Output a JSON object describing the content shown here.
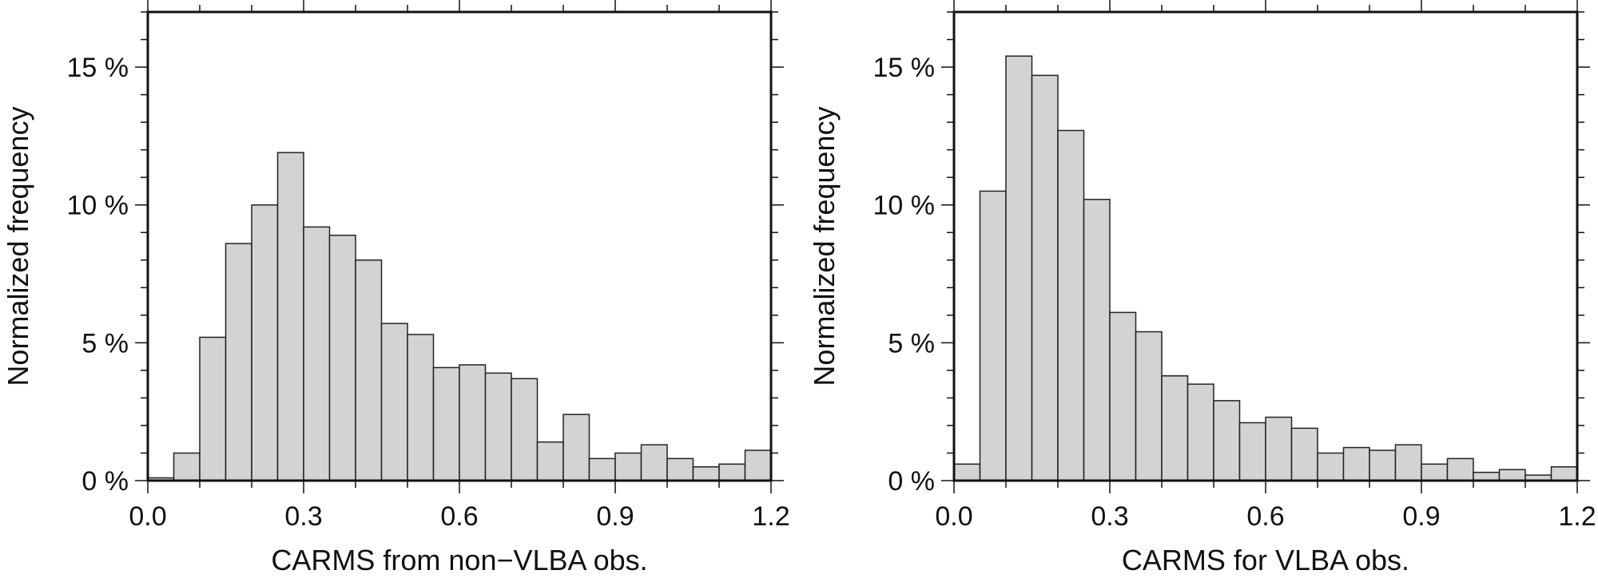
{
  "chart_data": [
    {
      "type": "bar",
      "xlabel": "CARMS from non−VLBA obs.",
      "ylabel": "Normalized frequency",
      "xlim": [
        0.0,
        1.2
      ],
      "ylim": [
        0,
        17
      ],
      "bin_width": 0.05,
      "x_ticks": [
        "0.0",
        "0.3",
        "0.6",
        "0.9",
        "1.2"
      ],
      "y_ticks": [
        "0 %",
        "5 %",
        "10 %",
        "15 %"
      ],
      "bins": [
        0.0,
        0.05,
        0.1,
        0.15,
        0.2,
        0.25,
        0.3,
        0.35,
        0.4,
        0.45,
        0.5,
        0.55,
        0.6,
        0.65,
        0.7,
        0.75,
        0.8,
        0.85,
        0.9,
        0.95,
        1.0,
        1.05,
        1.1,
        1.15
      ],
      "values": [
        0.1,
        1.0,
        5.2,
        8.6,
        10.0,
        11.9,
        9.2,
        8.9,
        8.0,
        5.7,
        5.3,
        4.1,
        4.2,
        3.9,
        3.7,
        1.4,
        2.4,
        0.8,
        1.0,
        1.3,
        0.8,
        0.5,
        0.6,
        1.1
      ],
      "bar_color": "#d3d3d3",
      "grid": false
    },
    {
      "type": "bar",
      "xlabel": "CARMS for VLBA obs.",
      "ylabel": "Normalized frequency",
      "xlim": [
        0.0,
        1.2
      ],
      "ylim": [
        0,
        17
      ],
      "bin_width": 0.05,
      "x_ticks": [
        "0.0",
        "0.3",
        "0.6",
        "0.9",
        "1.2"
      ],
      "y_ticks": [
        "0 %",
        "5 %",
        "10 %",
        "15 %"
      ],
      "bins": [
        0.0,
        0.05,
        0.1,
        0.15,
        0.2,
        0.25,
        0.3,
        0.35,
        0.4,
        0.45,
        0.5,
        0.55,
        0.6,
        0.65,
        0.7,
        0.75,
        0.8,
        0.85,
        0.9,
        0.95,
        1.0,
        1.05,
        1.1,
        1.15
      ],
      "values": [
        0.6,
        10.5,
        15.4,
        14.7,
        12.7,
        10.2,
        6.1,
        5.4,
        3.8,
        3.5,
        2.9,
        2.1,
        2.3,
        1.9,
        1.0,
        1.2,
        1.1,
        1.3,
        0.6,
        0.8,
        0.3,
        0.4,
        0.2,
        0.5
      ],
      "bar_color": "#d3d3d3",
      "grid": false
    }
  ]
}
